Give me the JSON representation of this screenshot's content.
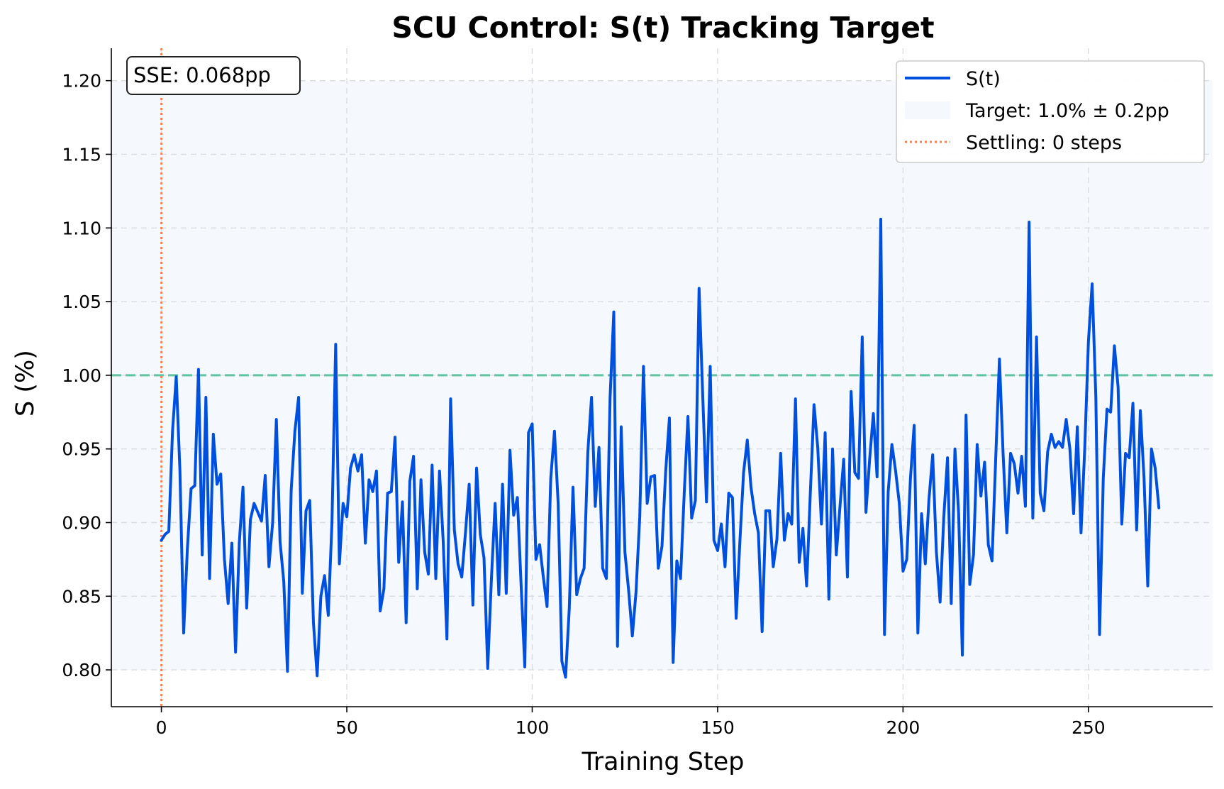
{
  "chart_data": {
    "type": "line",
    "title": "SCU Control: S(t) Tracking Target",
    "xlabel": "Training Step",
    "ylabel": "S (%)",
    "xlim": [
      -13.5,
      283.5
    ],
    "ylim": [
      0.775,
      1.222
    ],
    "xticks": [
      0,
      50,
      100,
      150,
      200,
      250
    ],
    "xtick_labels": [
      "0",
      "50",
      "100",
      "150",
      "200",
      "250"
    ],
    "yticks": [
      0.8,
      0.85,
      0.9,
      0.95,
      1.0,
      1.05,
      1.1,
      1.15,
      1.2
    ],
    "ytick_labels": [
      "0.80",
      "0.85",
      "0.90",
      "0.95",
      "1.00",
      "1.05",
      "1.10",
      "1.15",
      "1.20"
    ],
    "grid": true,
    "legend_position": "top-right",
    "target": {
      "value": 1.0,
      "band": [
        0.8,
        1.2
      ],
      "label": "Target: 1.0% ± 0.2pp"
    },
    "settling": {
      "step": 0,
      "label": "Settling: 0 steps"
    },
    "annotation": "SSE: 0.068pp",
    "series": [
      {
        "name": "S(t)",
        "color": "#0050e0",
        "x_start": 0,
        "x_step": 1,
        "values": [
          0.888,
          0.892,
          0.894,
          0.962,
          0.999,
          0.935,
          0.825,
          0.882,
          0.923,
          0.925,
          1.004,
          0.878,
          0.985,
          0.862,
          0.96,
          0.926,
          0.933,
          0.875,
          0.845,
          0.886,
          0.812,
          0.886,
          0.924,
          0.842,
          0.902,
          0.913,
          0.907,
          0.901,
          0.932,
          0.87,
          0.9,
          0.97,
          0.887,
          0.86,
          0.799,
          0.922,
          0.962,
          0.985,
          0.852,
          0.908,
          0.915,
          0.832,
          0.796,
          0.85,
          0.864,
          0.837,
          0.9,
          1.021,
          0.872,
          0.913,
          0.904,
          0.937,
          0.946,
          0.935,
          0.946,
          0.886,
          0.929,
          0.921,
          0.935,
          0.84,
          0.855,
          0.92,
          0.921,
          0.958,
          0.873,
          0.914,
          0.832,
          0.928,
          0.945,
          0.855,
          0.929,
          0.88,
          0.865,
          0.939,
          0.862,
          0.935,
          0.887,
          0.821,
          0.984,
          0.895,
          0.872,
          0.863,
          0.893,
          0.926,
          0.844,
          0.937,
          0.892,
          0.876,
          0.801,
          0.862,
          0.913,
          0.851,
          0.926,
          0.852,
          0.949,
          0.905,
          0.917,
          0.858,
          0.802,
          0.961,
          0.967,
          0.875,
          0.885,
          0.863,
          0.843,
          0.93,
          0.962,
          0.913,
          0.806,
          0.795,
          0.842,
          0.924,
          0.851,
          0.862,
          0.869,
          0.948,
          0.985,
          0.911,
          0.951,
          0.869,
          0.862,
          0.985,
          1.043,
          0.816,
          0.965,
          0.88,
          0.854,
          0.823,
          0.853,
          0.904,
          1.006,
          0.913,
          0.931,
          0.932,
          0.869,
          0.884,
          0.935,
          0.971,
          0.805,
          0.874,
          0.862,
          0.92,
          0.972,
          0.903,
          0.915,
          1.059,
          0.985,
          0.914,
          1.006,
          0.888,
          0.881,
          0.899,
          0.87,
          0.92,
          0.917,
          0.835,
          0.887,
          0.934,
          0.956,
          0.924,
          0.906,
          0.893,
          0.826,
          0.908,
          0.908,
          0.87,
          0.889,
          0.947,
          0.888,
          0.906,
          0.899,
          0.984,
          0.873,
          0.896,
          0.857,
          0.92,
          0.98,
          0.951,
          0.899,
          0.961,
          0.848,
          0.95,
          0.878,
          0.911,
          0.943,
          0.863,
          0.989,
          0.934,
          0.93,
          1.026,
          0.907,
          0.943,
          0.974,
          0.931,
          1.106,
          0.824,
          0.921,
          0.953,
          0.935,
          0.913,
          0.867,
          0.875,
          0.93,
          0.966,
          0.825,
          0.906,
          0.872,
          0.916,
          0.946,
          0.88,
          0.846,
          0.904,
          0.944,
          0.845,
          0.95,
          0.906,
          0.81,
          0.973,
          0.858,
          0.878,
          0.953,
          0.918,
          0.941,
          0.885,
          0.874,
          0.944,
          1.011,
          0.946,
          0.893,
          0.947,
          0.94,
          0.92,
          0.945,
          0.911,
          1.104,
          0.903,
          1.026,
          0.92,
          0.908,
          0.948,
          0.96,
          0.951,
          0.955,
          0.951,
          0.97,
          0.95,
          0.906,
          0.965,
          0.893,
          0.95,
          1.023,
          1.062,
          0.985,
          0.824,
          0.93,
          0.977,
          0.975,
          1.02,
          0.992,
          0.899,
          0.947,
          0.944,
          0.981,
          0.895,
          0.976,
          0.93,
          0.857,
          0.95,
          0.937,
          0.91
        ]
      }
    ]
  },
  "colors": {
    "series": "#0050e0",
    "target_line": "#5ec5a0",
    "target_band": "#f5f9fe",
    "settling_line": "#f5825c",
    "grid": "#d9dde2"
  }
}
